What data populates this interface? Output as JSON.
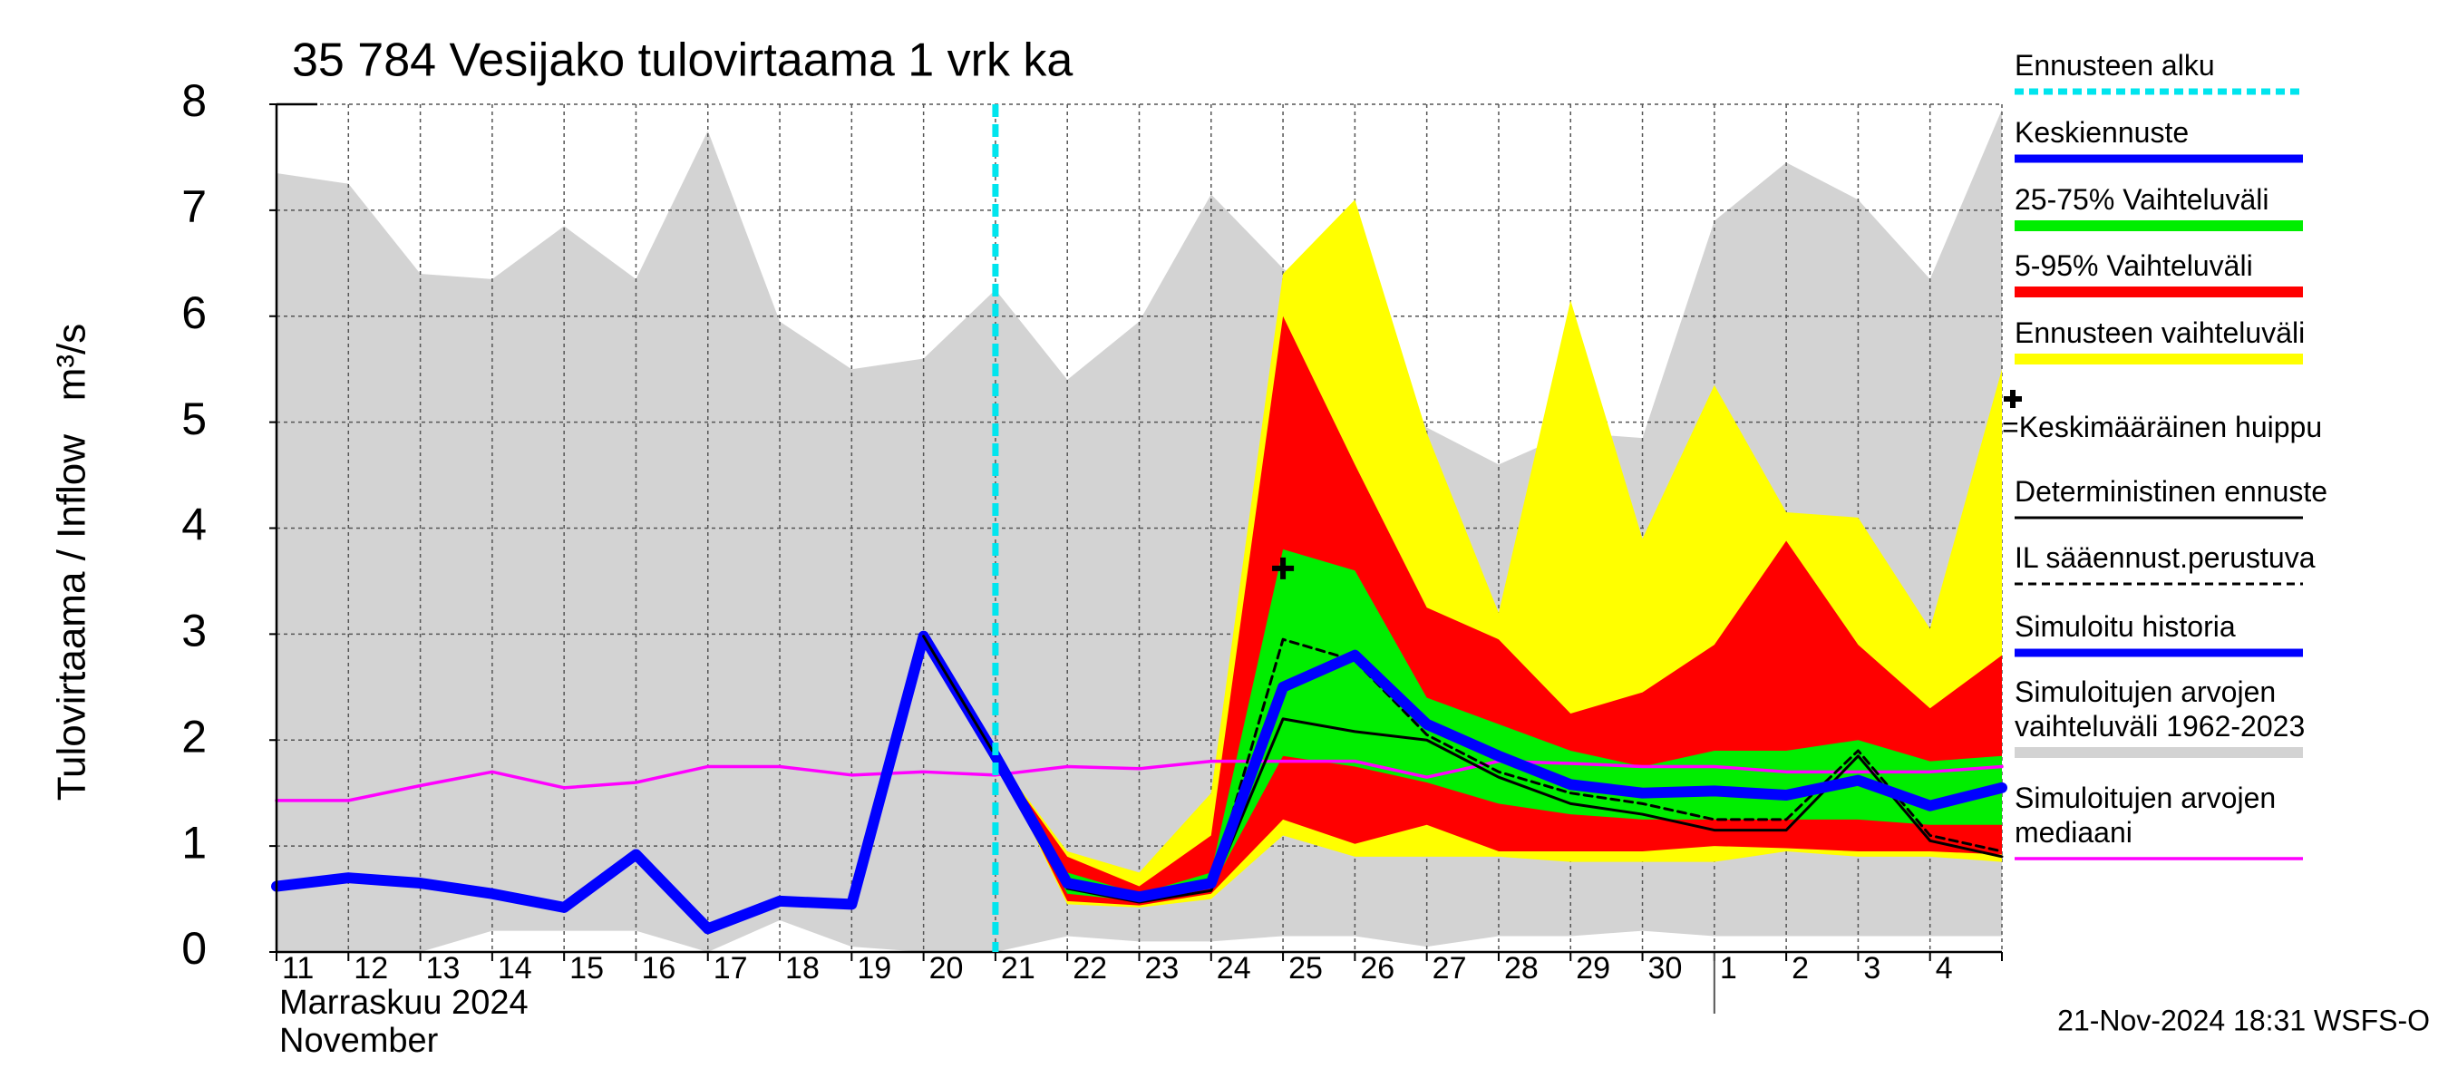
{
  "chart_data": {
    "type": "band-line",
    "title": "35 784 Vesijako tulovirtaama 1 vrk ka",
    "y_label": "Tulovirtaama / Inflow   m³/s",
    "x_label": [
      "Marraskuu 2024",
      "November"
    ],
    "timestamp": "21-Nov-2024 18:31 WSFS-O",
    "categories": [
      "11",
      "12",
      "13",
      "14",
      "15",
      "16",
      "17",
      "18",
      "19",
      "20",
      "21",
      "22",
      "23",
      "24",
      "25",
      "26",
      "27",
      "28",
      "29",
      "30",
      "1",
      "2",
      "3",
      "4",
      null
    ],
    "ylim": [
      0,
      8
    ],
    "yticks": [
      0,
      1,
      2,
      3,
      4,
      5,
      6,
      7,
      8
    ],
    "grid": true,
    "forecast_start": {
      "name": "Ennusteen alku",
      "category": "21",
      "color": "#00e5ee"
    },
    "peak": {
      "name": "=Keskimääräinen huippu",
      "category": "25",
      "value": 3.62,
      "color": "#000000"
    },
    "series": [
      {
        "name": "Keskiennuste",
        "kind": "line",
        "style": "thick",
        "color": "#0000ff",
        "values": [
          null,
          null,
          null,
          null,
          null,
          null,
          null,
          null,
          null,
          null,
          1.85,
          0.65,
          0.52,
          0.65,
          2.5,
          2.8,
          2.15,
          1.85,
          1.58,
          1.5,
          1.52,
          1.48,
          1.62,
          1.38,
          1.55
        ]
      },
      {
        "name": "25-75% Vaihteluväli",
        "kind": "band",
        "color": "#00ee00",
        "upper": [
          null,
          null,
          null,
          null,
          null,
          null,
          null,
          null,
          null,
          null,
          1.85,
          0.75,
          0.55,
          0.75,
          3.8,
          3.6,
          2.4,
          2.15,
          1.9,
          1.75,
          1.9,
          1.9,
          2.0,
          1.8,
          1.85
        ],
        "lower": [
          null,
          null,
          null,
          null,
          null,
          null,
          null,
          null,
          null,
          null,
          1.85,
          0.55,
          0.48,
          0.6,
          1.85,
          1.75,
          1.6,
          1.4,
          1.3,
          1.25,
          1.25,
          1.25,
          1.25,
          1.2,
          1.2
        ]
      },
      {
        "name": "5-95% Vaihteluväli",
        "kind": "band",
        "color": "#ff0000",
        "upper": [
          null,
          null,
          null,
          null,
          null,
          null,
          null,
          null,
          null,
          null,
          1.85,
          0.9,
          0.62,
          1.1,
          6.0,
          4.6,
          3.25,
          2.95,
          2.25,
          2.45,
          2.9,
          3.88,
          2.9,
          2.3,
          2.8
        ],
        "lower": [
          null,
          null,
          null,
          null,
          null,
          null,
          null,
          null,
          null,
          null,
          1.85,
          0.48,
          0.44,
          0.55,
          1.25,
          1.02,
          1.2,
          0.95,
          0.95,
          0.95,
          1.0,
          0.98,
          0.95,
          0.95,
          0.92
        ]
      },
      {
        "name": "Ennusteen vaihteluväli",
        "kind": "band",
        "color": "#ffff00",
        "upper": [
          null,
          null,
          null,
          null,
          null,
          null,
          null,
          null,
          null,
          null,
          1.85,
          0.95,
          0.75,
          1.5,
          6.4,
          7.1,
          4.9,
          3.2,
          6.15,
          3.9,
          5.35,
          4.15,
          4.1,
          3.05,
          5.5
        ],
        "lower": [
          null,
          null,
          null,
          null,
          null,
          null,
          null,
          null,
          null,
          null,
          1.85,
          0.45,
          0.42,
          0.5,
          1.1,
          0.9,
          0.9,
          0.9,
          0.85,
          0.85,
          0.85,
          0.95,
          0.9,
          0.9,
          0.85
        ]
      },
      {
        "name": "Deterministinen ennuste",
        "kind": "line",
        "style": "thin",
        "color": "#000000",
        "values": [
          null,
          null,
          null,
          null,
          null,
          null,
          null,
          null,
          null,
          2.98,
          1.85,
          0.6,
          0.47,
          0.58,
          2.2,
          2.08,
          2.0,
          1.65,
          1.4,
          1.3,
          1.15,
          1.15,
          1.85,
          1.05,
          0.9
        ]
      },
      {
        "name": "IL sääennust.perustuva",
        "kind": "line",
        "style": "dashed",
        "color": "#000000",
        "values": [
          null,
          null,
          null,
          null,
          null,
          null,
          null,
          null,
          null,
          null,
          1.85,
          0.65,
          0.5,
          0.62,
          2.95,
          2.75,
          2.05,
          1.7,
          1.5,
          1.4,
          1.25,
          1.25,
          1.9,
          1.1,
          0.95
        ]
      },
      {
        "name": "Simuloitu historia",
        "kind": "line",
        "style": "thick",
        "color": "#0000ff",
        "values": [
          0.62,
          0.7,
          0.65,
          0.55,
          0.42,
          0.92,
          0.22,
          0.48,
          0.45,
          2.98,
          1.85,
          null,
          null,
          null,
          null,
          null,
          null,
          null,
          null,
          null,
          null,
          null,
          null,
          null,
          null
        ]
      },
      {
        "name": "Simuloitujen arvojen vaihteluväli 1962-2023",
        "kind": "band",
        "color": "#d3d3d3",
        "upper": [
          7.35,
          7.25,
          6.4,
          6.35,
          6.85,
          6.35,
          7.75,
          5.95,
          5.5,
          5.6,
          6.25,
          5.4,
          5.95,
          7.15,
          6.45,
          6.0,
          4.95,
          4.6,
          4.9,
          4.85,
          6.9,
          7.45,
          7.1,
          6.35,
          7.95
        ],
        "lower": [
          0,
          0,
          0,
          0.2,
          0.2,
          0.2,
          0,
          0.3,
          0.05,
          0,
          0,
          0.15,
          0.1,
          0.1,
          0.15,
          0.15,
          0.05,
          0.15,
          0.15,
          0.2,
          0.15,
          0.15,
          0.15,
          0.15,
          0.15
        ]
      },
      {
        "name": "Simuloitujen arvojen mediaani",
        "kind": "line",
        "style": "medium",
        "color": "#ff00ff",
        "values": [
          1.43,
          1.43,
          1.57,
          1.7,
          1.55,
          1.6,
          1.75,
          1.75,
          1.67,
          1.7,
          1.67,
          1.75,
          1.73,
          1.8,
          1.8,
          1.8,
          1.65,
          1.8,
          1.78,
          1.75,
          1.75,
          1.7,
          1.7,
          1.7,
          1.75
        ]
      }
    ]
  }
}
